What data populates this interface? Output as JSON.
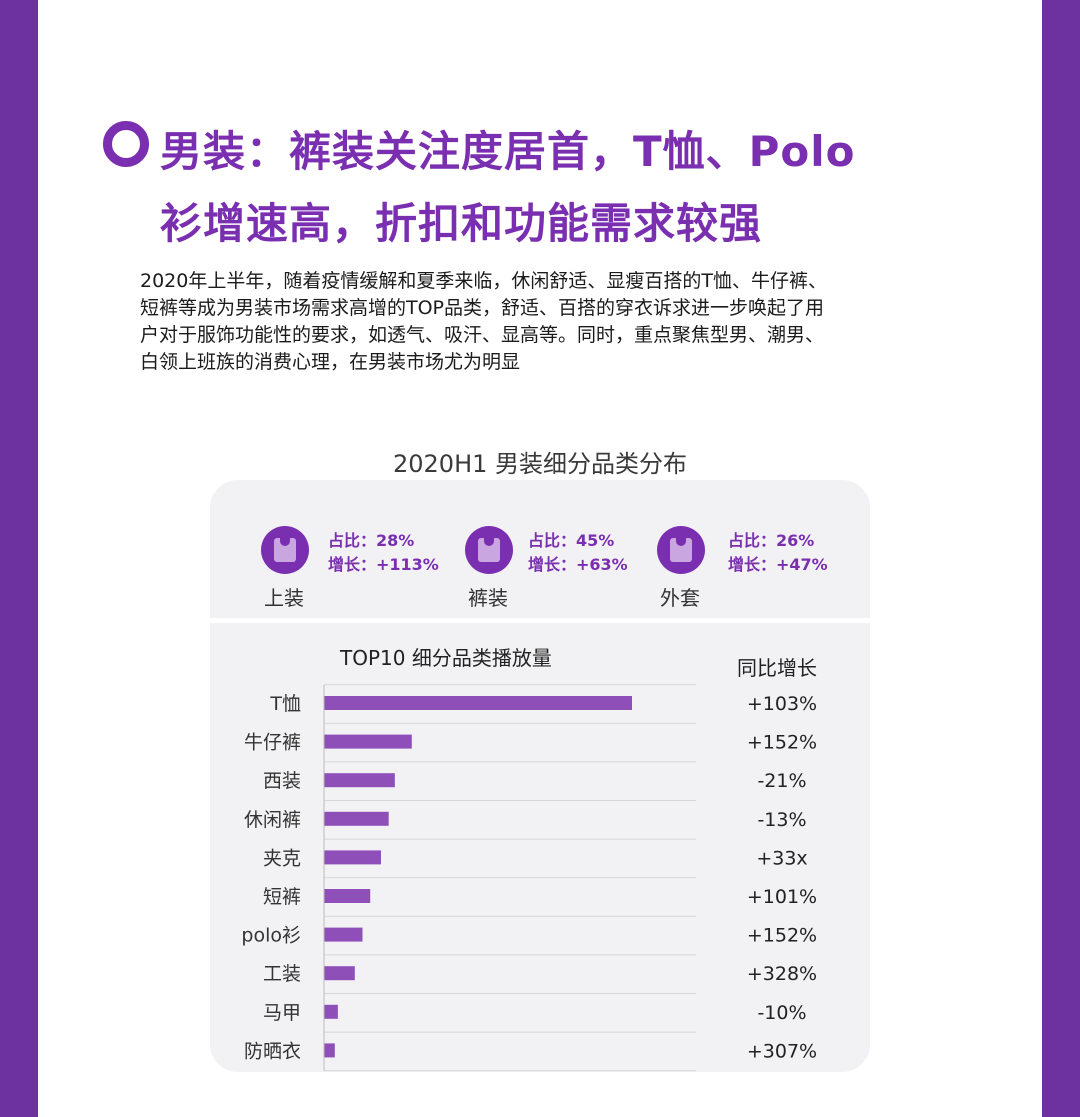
{
  "title": {
    "line1": "男装：裤装关注度居首，T恤、Polo",
    "line2": "衫增速高，折扣和功能需求较强"
  },
  "description": [
    "2020年上半年，随着疫情缓解和夏季来临，休闲舒适、显瘦百搭的T恤、牛仔裤、",
    "短裤等成为男装市场需求高增的TOP品类，舒适、百搭的穿衣诉求进一步唤起了用",
    "户对于服饰功能性的要求，如透气、吸汗、显高等。同时，重点聚焦型男、潮男、",
    "白领上班族的消费心理，在男装市场尤为明显"
  ],
  "chart_title": "2020H1 男装细分品类分布",
  "categories_summary": [
    {
      "name": "上装",
      "share": "占比：28%",
      "growth": "增长：+113%",
      "icon": "shirt-icon"
    },
    {
      "name": "裤装",
      "share": "占比：45%",
      "growth": "增长：+63%",
      "icon": "shirt-icon"
    },
    {
      "name": "外套",
      "share": "占比：26%",
      "growth": "增长：+47%",
      "icon": "shirt-icon"
    }
  ],
  "colors": {
    "accent": "#7a2fb0",
    "bar": "#8e4fb8",
    "sidebar": "#6e32a0"
  },
  "chart_data": {
    "type": "bar",
    "orientation": "horizontal",
    "title": "TOP10 细分品类播放量",
    "yoy_title": "同比增长",
    "categories": [
      "T恤",
      "牛仔裤",
      "西装",
      "休闲裤",
      "夹克",
      "短裤",
      "polo衫",
      "工装",
      "马甲",
      "防晒衣"
    ],
    "values": [
      100,
      28.5,
      23,
      21,
      18.5,
      15,
      12.5,
      10,
      4.5,
      3.5
    ],
    "yoy": [
      "+103%",
      "+152%",
      "-21%",
      "-13%",
      "+33x",
      "+101%",
      "+152%",
      "+328%",
      "-10%",
      "+307%"
    ],
    "grid": true
  }
}
